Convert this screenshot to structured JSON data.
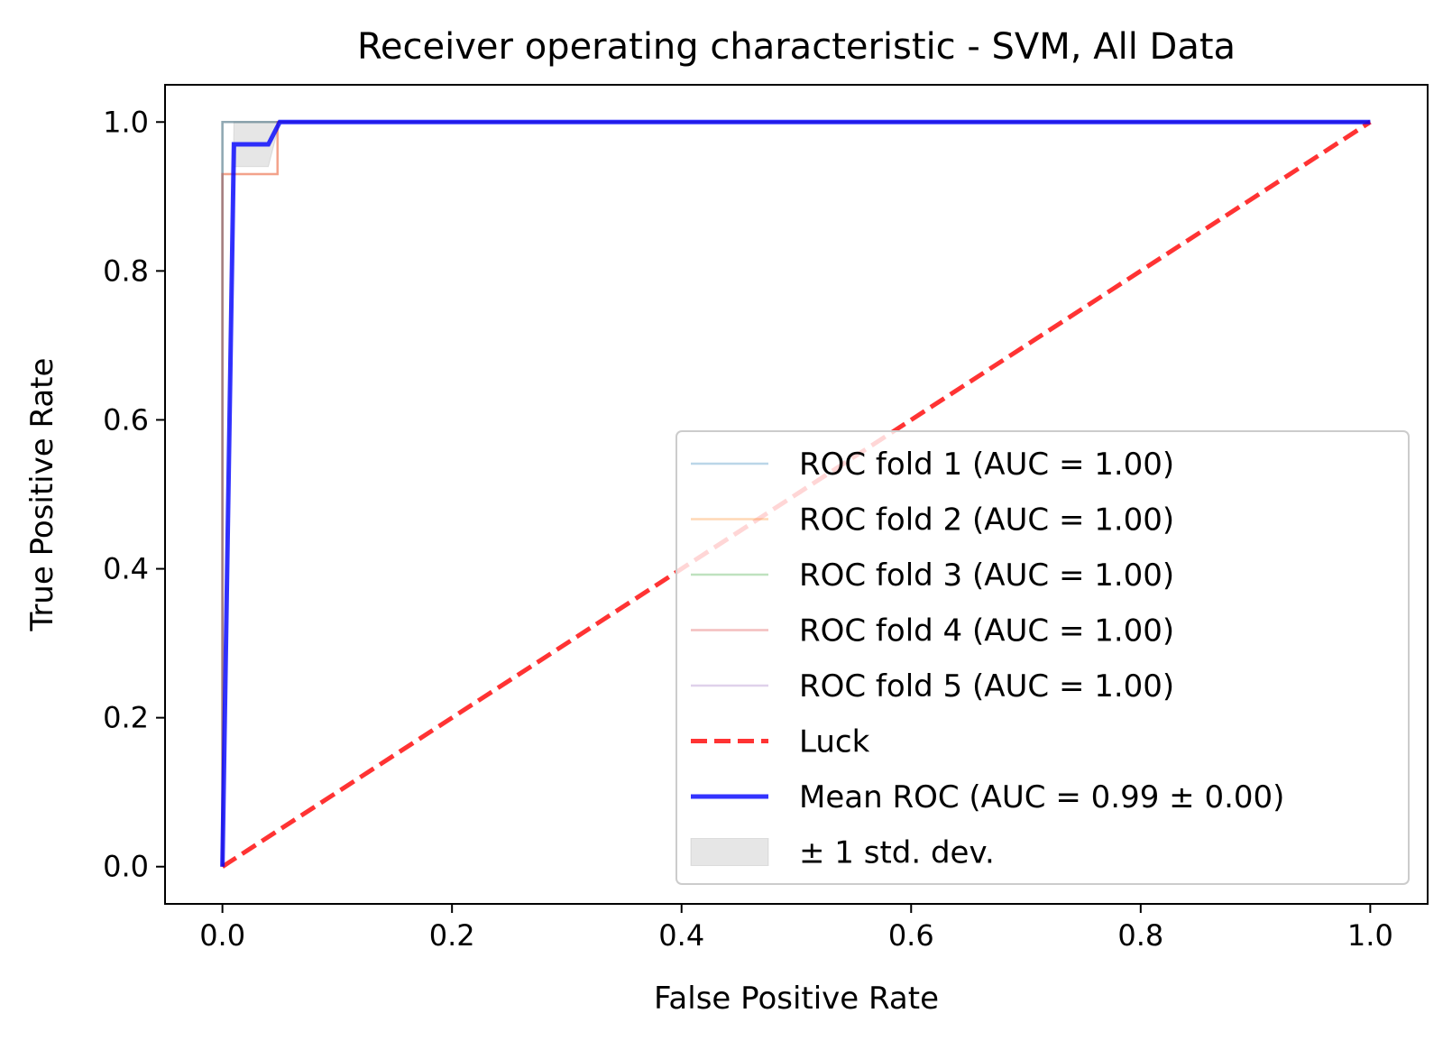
{
  "chart_data": {
    "type": "line",
    "title": "Receiver operating characteristic - SVM, All Data",
    "xlabel": "False Positive Rate",
    "ylabel": "True Positive Rate",
    "xlim": [
      -0.05,
      1.05
    ],
    "ylim": [
      -0.05,
      1.05
    ],
    "xticks": [
      0.0,
      0.2,
      0.4,
      0.6,
      0.8,
      1.0
    ],
    "yticks": [
      0.0,
      0.2,
      0.4,
      0.6,
      0.8,
      1.0
    ],
    "xtick_labels": [
      "0.0",
      "0.2",
      "0.4",
      "0.6",
      "0.8",
      "1.0"
    ],
    "ytick_labels": [
      "0.0",
      "0.2",
      "0.4",
      "0.6",
      "0.8",
      "1.0"
    ],
    "grid": false,
    "legend_position": "lower right",
    "series": [
      {
        "name": "ROC fold 1 (AUC = 1.00)",
        "color": "#1f77b4",
        "opacity": 0.3,
        "width": 2.5,
        "x": [
          0,
          0,
          1
        ],
        "y": [
          0,
          1,
          1
        ]
      },
      {
        "name": "ROC fold 2 (AUC = 1.00)",
        "color": "#ff7f0e",
        "opacity": 0.3,
        "width": 2.5,
        "x": [
          0,
          0,
          0.048,
          0.048,
          1
        ],
        "y": [
          0,
          0.93,
          0.93,
          1,
          1
        ]
      },
      {
        "name": "ROC fold 3 (AUC = 1.00)",
        "color": "#2ca02c",
        "opacity": 0.3,
        "width": 2.5,
        "x": [
          0,
          0,
          1
        ],
        "y": [
          0,
          1,
          1
        ]
      },
      {
        "name": "ROC fold 4 (AUC = 1.00)",
        "color": "#d62728",
        "opacity": 0.3,
        "width": 2.5,
        "x": [
          0,
          0,
          0.048,
          0.048,
          1
        ],
        "y": [
          0,
          0.93,
          0.93,
          1,
          1
        ]
      },
      {
        "name": "ROC fold 5 (AUC = 1.00)",
        "color": "#9467bd",
        "opacity": 0.3,
        "width": 2.5,
        "x": [
          0,
          0,
          1
        ],
        "y": [
          0,
          1,
          1
        ]
      },
      {
        "name": "Luck",
        "color": "#ff0000",
        "opacity": 0.8,
        "width": 5,
        "dash": true,
        "x": [
          0,
          1
        ],
        "y": [
          0,
          1
        ]
      },
      {
        "name": "Mean ROC (AUC = 0.99 ± 0.00)",
        "color": "#0000ff",
        "opacity": 0.8,
        "width": 5,
        "x": [
          0,
          0.01,
          0.04,
          0.05,
          1
        ],
        "y": [
          0,
          0.97,
          0.97,
          1,
          1
        ]
      }
    ],
    "band": {
      "name": "± 1 std. dev.",
      "color": "#808080",
      "opacity": 0.2,
      "x": [
        0,
        0.01,
        0.04,
        0.05,
        1
      ],
      "upper": [
        0,
        1,
        1,
        1,
        1
      ],
      "lower": [
        0,
        0.94,
        0.94,
        1,
        1
      ]
    }
  }
}
